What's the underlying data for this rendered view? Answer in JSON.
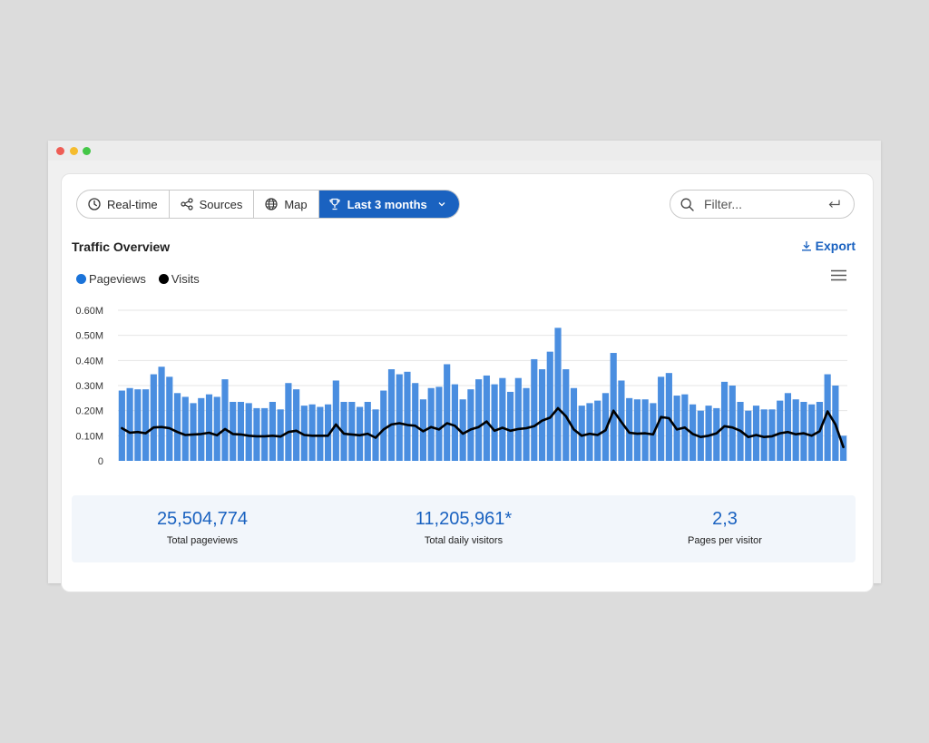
{
  "toolbar": {
    "tabs": [
      {
        "label": "Real-time",
        "icon": "clock-icon"
      },
      {
        "label": "Sources",
        "icon": "share-icon"
      },
      {
        "label": "Map",
        "icon": "globe-icon"
      },
      {
        "label": "Last 3 months",
        "icon": "trophy-icon",
        "active": true
      }
    ],
    "filter_placeholder": "Filter..."
  },
  "header": {
    "title": "Traffic Overview",
    "export_label": "Export"
  },
  "legend": [
    {
      "label": "Pageviews",
      "color": "#1a73d9"
    },
    {
      "label": "Visits",
      "color": "#000000"
    }
  ],
  "chart_data": {
    "type": "bar",
    "ylim": [
      0,
      600000
    ],
    "yticks": [
      "0",
      "0.10M",
      "0.20M",
      "0.30M",
      "0.40M",
      "0.50M",
      "0.60M"
    ],
    "grid": true,
    "series": [
      {
        "name": "Pageviews",
        "type": "bar",
        "color": "#4a8ee0",
        "values": [
          280000,
          290000,
          285000,
          285000,
          345000,
          375000,
          335000,
          270000,
          255000,
          230000,
          250000,
          265000,
          255000,
          325000,
          235000,
          235000,
          230000,
          210000,
          210000,
          235000,
          205000,
          310000,
          285000,
          220000,
          225000,
          215000,
          225000,
          320000,
          235000,
          235000,
          215000,
          235000,
          205000,
          280000,
          365000,
          345000,
          355000,
          310000,
          245000,
          290000,
          295000,
          385000,
          305000,
          245000,
          285000,
          325000,
          340000,
          305000,
          330000,
          275000,
          330000,
          290000,
          405000,
          365000,
          435000,
          530000,
          365000,
          290000,
          220000,
          230000,
          240000,
          270000,
          430000,
          320000,
          250000,
          245000,
          245000,
          230000,
          335000,
          350000,
          260000,
          265000,
          225000,
          200000,
          220000,
          210000,
          315000,
          300000,
          235000,
          200000,
          220000,
          205000,
          205000,
          240000,
          270000,
          245000,
          235000,
          225000,
          235000,
          345000,
          300000,
          100000
        ]
      },
      {
        "name": "Visits",
        "type": "line",
        "color": "#000000",
        "values": [
          130000,
          112000,
          115000,
          110000,
          133000,
          135000,
          130000,
          115000,
          103000,
          105000,
          107000,
          112000,
          102000,
          127000,
          107000,
          105000,
          100000,
          98000,
          98000,
          100000,
          97000,
          115000,
          120000,
          103000,
          100000,
          100000,
          100000,
          145000,
          108000,
          105000,
          102000,
          108000,
          92000,
          125000,
          145000,
          150000,
          143000,
          140000,
          118000,
          135000,
          125000,
          150000,
          140000,
          108000,
          125000,
          135000,
          157000,
          120000,
          132000,
          120000,
          127000,
          130000,
          138000,
          160000,
          172000,
          210000,
          178000,
          125000,
          100000,
          108000,
          103000,
          122000,
          200000,
          155000,
          112000,
          108000,
          110000,
          105000,
          175000,
          170000,
          125000,
          133000,
          107000,
          95000,
          100000,
          110000,
          138000,
          133000,
          120000,
          95000,
          103000,
          95000,
          98000,
          110000,
          115000,
          106000,
          110000,
          100000,
          118000,
          197000,
          145000,
          55000
        ]
      }
    ]
  },
  "stats": [
    {
      "value": "25,504,774",
      "label": "Total pageviews"
    },
    {
      "value": "11,205,961*",
      "label": "Total daily visitors"
    },
    {
      "value": "2,3",
      "label": "Pages per visitor"
    }
  ]
}
